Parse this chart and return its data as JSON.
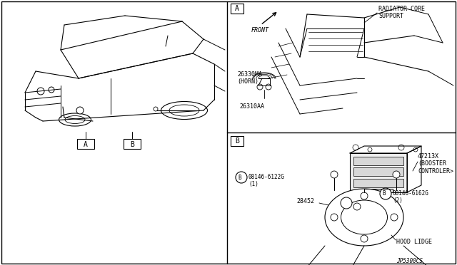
{
  "bg": "#ffffff",
  "fg": "#000000",
  "fig_width": 6.4,
  "fig_height": 3.72,
  "dpi": 100,
  "border_color": "#888888",
  "labels": {
    "front": "FRONT",
    "radiator": "RADIATOR CORE\nSUPPORT",
    "part_26330MA": "26330MA\n(HORN)",
    "part_26310AA": "26310AA",
    "part_47213X": "47213X\n(BOOSTER\nCONTROLER>",
    "part_08146_6122G": "08146-6122G\n(1)",
    "part_28452": "28452",
    "part_08146_6162G": "08146-6162G\n(2)",
    "hood_lidge": "HOOD LIDGE",
    "box_A": "A",
    "box_B": "B",
    "diagram_id": "JP5300CS"
  }
}
